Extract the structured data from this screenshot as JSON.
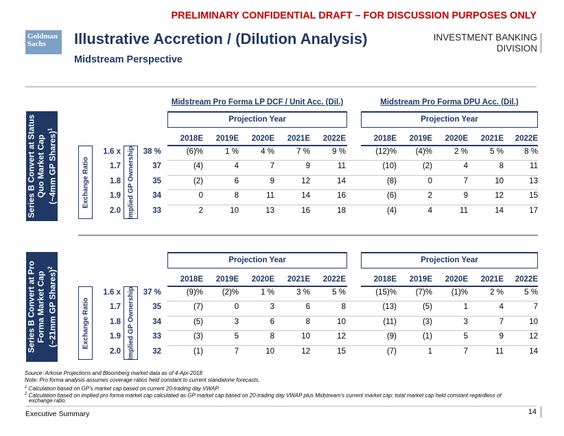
{
  "header": {
    "draft_banner": "PRELIMINARY CONFIDENTIAL DRAFT – FOR DISCUSSION PURPOSES ONLY",
    "logo_line1": "Goldman",
    "logo_line2": "Sachs",
    "title": "Illustrative Accretion / (Dilution Analysis)",
    "subtitle": "Midstream Perspective",
    "division_line1": "INVESTMENT BANKING",
    "division_line2": "DIVISION"
  },
  "col_headers": {
    "left": "Midstream Pro Forma LP DCF / Unit Acc. (Dil.)",
    "right": "Midstream Pro Forma DPU Acc. (Dil.)",
    "projection": "Projection Year",
    "years": [
      "2018E",
      "2019E",
      "2020E",
      "2021E",
      "2022E"
    ]
  },
  "sections": [
    {
      "label_l1": "Series B Convert at Status",
      "label_l2": "Quo Market Cap",
      "label_l3": "(~4mm GP Shares)",
      "label_sup": "1",
      "exchange_label": "Exchange Ratio",
      "gp_label": "Implied GP Ownership",
      "rows": [
        {
          "ex": "1.6 x",
          "gp": "38 %",
          "lp": [
            "(6)%",
            "1 %",
            "4 %",
            "7 %",
            "9 %"
          ],
          "dpu": [
            "(12)%",
            "(4)%",
            "2 %",
            "5 %",
            "8 %"
          ]
        },
        {
          "ex": "1.7",
          "gp": "37",
          "lp": [
            "(4)",
            "4",
            "7",
            "9",
            "11"
          ],
          "dpu": [
            "(10)",
            "(2)",
            "4",
            "8",
            "11"
          ]
        },
        {
          "ex": "1.8",
          "gp": "35",
          "lp": [
            "(2)",
            "6",
            "9",
            "12",
            "14"
          ],
          "dpu": [
            "(8)",
            "0",
            "7",
            "10",
            "13"
          ]
        },
        {
          "ex": "1.9",
          "gp": "34",
          "lp": [
            "0",
            "8",
            "11",
            "14",
            "16"
          ],
          "dpu": [
            "(6)",
            "2",
            "9",
            "12",
            "15"
          ]
        },
        {
          "ex": "2.0",
          "gp": "33",
          "lp": [
            "2",
            "10",
            "13",
            "16",
            "18"
          ],
          "dpu": [
            "(4)",
            "4",
            "11",
            "14",
            "17"
          ]
        }
      ]
    },
    {
      "label_l1": "Series B Convert at Pro",
      "label_l2": "Forma Market Cap",
      "label_l3": "(~21mm GP Shares)",
      "label_sup": "2",
      "exchange_label": "Exchange Ratio",
      "gp_label": "Implied GP Ownership",
      "rows": [
        {
          "ex": "1.6 x",
          "gp": "37 %",
          "lp": [
            "(9)%",
            "(2)%",
            "1 %",
            "3 %",
            "5 %"
          ],
          "dpu": [
            "(15)%",
            "(7)%",
            "(1)%",
            "2 %",
            "5 %"
          ]
        },
        {
          "ex": "1.7",
          "gp": "35",
          "lp": [
            "(7)",
            "0",
            "3",
            "6",
            "8"
          ],
          "dpu": [
            "(13)",
            "(5)",
            "1",
            "4",
            "7"
          ]
        },
        {
          "ex": "1.8",
          "gp": "34",
          "lp": [
            "(5)",
            "3",
            "6",
            "8",
            "10"
          ],
          "dpu": [
            "(11)",
            "(3)",
            "3",
            "7",
            "10"
          ]
        },
        {
          "ex": "1.9",
          "gp": "33",
          "lp": [
            "(3)",
            "5",
            "8",
            "10",
            "12"
          ],
          "dpu": [
            "(9)",
            "(1)",
            "5",
            "9",
            "12"
          ]
        },
        {
          "ex": "2.0",
          "gp": "32",
          "lp": [
            "(1)",
            "7",
            "10",
            "12",
            "15"
          ],
          "dpu": [
            "(7)",
            "1",
            "7",
            "11",
            "14"
          ]
        }
      ]
    }
  ],
  "footnotes": {
    "source": "Source: Arkose Projections and Bloomberg market data as of 4-Apr-2018",
    "note": "Note: Pro forma analysis assumes coverage ratios held constant to current standalone forecasts.",
    "fn1_mark": "1",
    "fn1": " Calculation based on GP's market cap based on current 20-trading day VWAP.",
    "fn2_mark": "2",
    "fn2_line1": " Calculation based on implied pro forma market cap calculated as GP market cap based on 20-trading day VWAP plus Midstream's current market cap; total market cap held constant regardless of",
    "fn2_line2": "exchange ratio."
  },
  "footer": {
    "section_name": "Executive Summary",
    "page_number": "14"
  }
}
